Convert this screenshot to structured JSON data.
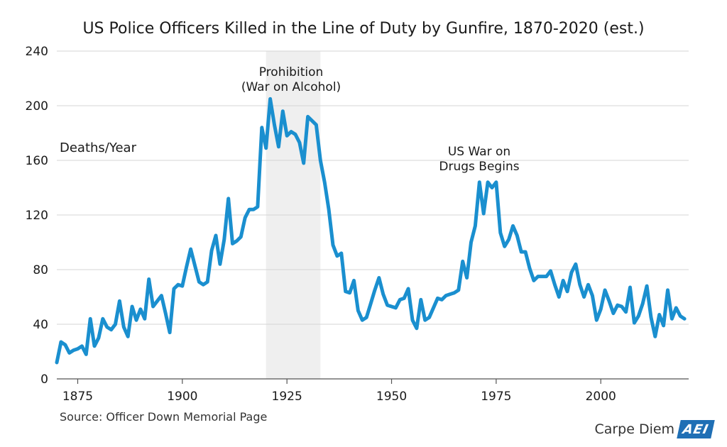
{
  "chart_data": {
    "type": "line",
    "title": "US Police Officers Killed in the Line of Duty by Gunfire, 1870-2020 (est.)",
    "ylabel": "Deaths/Year",
    "xlabel": "",
    "xlim": [
      1870,
      2021
    ],
    "ylim": [
      0,
      240
    ],
    "x_ticks": [
      1875,
      1900,
      1925,
      1950,
      1975,
      2000
    ],
    "y_ticks": [
      0,
      40,
      80,
      120,
      160,
      200,
      240
    ],
    "grid": "horizontal",
    "shaded_regions": [
      {
        "label": "Prohibition (War on Alcohol)",
        "start": 1920,
        "end": 1933
      }
    ],
    "annotations": [
      {
        "text_line1": "Prohibition",
        "text_line2": "(War on Alcohol)"
      },
      {
        "text_line1": "US War on",
        "text_line2": "Drugs Begins"
      }
    ],
    "color": "#1a8fcf",
    "series": [
      {
        "name": "Deaths/Year",
        "x": [
          1870,
          1871,
          1872,
          1873,
          1874,
          1875,
          1876,
          1877,
          1878,
          1879,
          1880,
          1881,
          1882,
          1883,
          1884,
          1885,
          1886,
          1887,
          1888,
          1889,
          1890,
          1891,
          1892,
          1893,
          1894,
          1895,
          1896,
          1897,
          1898,
          1899,
          1900,
          1901,
          1902,
          1903,
          1904,
          1905,
          1906,
          1907,
          1908,
          1909,
          1910,
          1911,
          1912,
          1913,
          1914,
          1915,
          1916,
          1917,
          1918,
          1919,
          1920,
          1921,
          1922,
          1923,
          1924,
          1925,
          1926,
          1927,
          1928,
          1929,
          1930,
          1931,
          1932,
          1933,
          1934,
          1935,
          1936,
          1937,
          1938,
          1939,
          1940,
          1941,
          1942,
          1943,
          1944,
          1945,
          1946,
          1947,
          1948,
          1949,
          1950,
          1951,
          1952,
          1953,
          1954,
          1955,
          1956,
          1957,
          1958,
          1959,
          1960,
          1961,
          1962,
          1963,
          1964,
          1965,
          1966,
          1967,
          1968,
          1969,
          1970,
          1971,
          1972,
          1973,
          1974,
          1975,
          1976,
          1977,
          1978,
          1979,
          1980,
          1981,
          1982,
          1983,
          1984,
          1985,
          1986,
          1987,
          1988,
          1989,
          1990,
          1991,
          1992,
          1993,
          1994,
          1995,
          1996,
          1997,
          1998,
          1999,
          2000,
          2001,
          2002,
          2003,
          2004,
          2005,
          2006,
          2007,
          2008,
          2009,
          2010,
          2011,
          2012,
          2013,
          2014,
          2015,
          2016,
          2017,
          2018,
          2019,
          2020
        ],
        "values": [
          12,
          27,
          25,
          19,
          21,
          22,
          24,
          18,
          44,
          24,
          30,
          44,
          38,
          36,
          40,
          57,
          38,
          31,
          53,
          43,
          51,
          44,
          73,
          53,
          57,
          61,
          48,
          34,
          66,
          69,
          68,
          82,
          95,
          83,
          71,
          69,
          71,
          94,
          105,
          84,
          102,
          132,
          99,
          101,
          104,
          118,
          124,
          124,
          126,
          184,
          169,
          205,
          186,
          170,
          196,
          178,
          181,
          179,
          173,
          158,
          192,
          189,
          186,
          160,
          144,
          124,
          98,
          90,
          92,
          64,
          63,
          72,
          50,
          43,
          45,
          55,
          65,
          74,
          62,
          54,
          53,
          52,
          58,
          59,
          66,
          43,
          37,
          58,
          43,
          45,
          52,
          59,
          58,
          61,
          62,
          63,
          65,
          86,
          74,
          100,
          112,
          144,
          121,
          144,
          140,
          144,
          107,
          97,
          102,
          112,
          105,
          93,
          93,
          81,
          72,
          75,
          75,
          75,
          79,
          69,
          60,
          72,
          64,
          78,
          84,
          69,
          60,
          69,
          61,
          43,
          51,
          65,
          57,
          48,
          54,
          53,
          49,
          67,
          41,
          46,
          55,
          68,
          45,
          31,
          47,
          39,
          65,
          44,
          52,
          46,
          44
        ]
      }
    ]
  },
  "ui": {
    "source": "Source: Officer Down Memorial Page",
    "brand_text": "Carpe Diem",
    "brand_logo": "AEI"
  }
}
